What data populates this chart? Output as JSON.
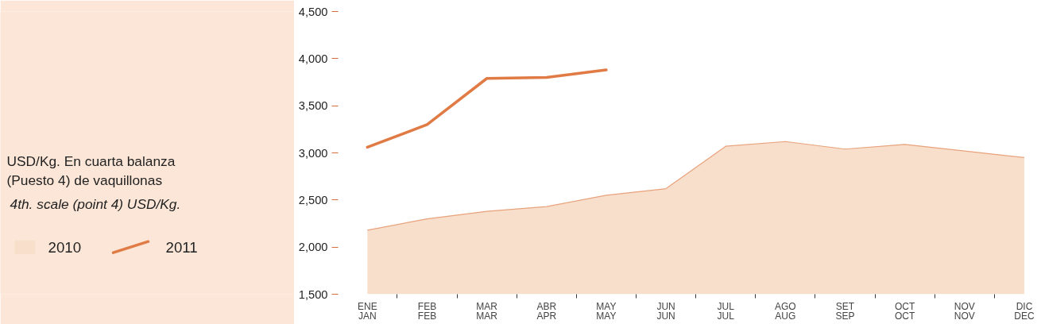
{
  "chart_data": {
    "type": "line",
    "annotations": [
      "USD/Kg. En cuarta balanza\n(Puesto 4) de vaquillonas"
    ],
    "subtitle": "4th. scale (point 4) USD/Kg.",
    "categories": [
      "ENE\nJAN",
      "FEB\nFEB",
      "MAR\nMAR",
      "ABR\nAPR",
      "MAY\nMAY",
      "JUN\nJUN",
      "JUL\nJUL",
      "AGO\nAUG",
      "SET\nSEP",
      "OCT\nOCT",
      "NOV\nNOV",
      "DIC\nDEC"
    ],
    "series": [
      {
        "name": "2010",
        "type": "area",
        "color": "#f7dfcc",
        "values": [
          2180,
          2300,
          2380,
          2430,
          2550,
          2620,
          3070,
          3120,
          3040,
          3090,
          3020,
          2950
        ]
      },
      {
        "name": "2011",
        "color": "#e07b45",
        "values": [
          3060,
          3300,
          3790,
          3800,
          3880,
          null,
          null,
          null,
          null,
          null,
          null,
          null
        ]
      }
    ],
    "ylim": [
      1500,
      4500
    ],
    "yticks": [
      {
        "value": 1500,
        "label": "1,500"
      },
      {
        "value": 2000,
        "label": "2,000"
      },
      {
        "value": 2500,
        "label": "2,500"
      },
      {
        "value": 3000,
        "label": "3,000"
      },
      {
        "value": 3500,
        "label": "3,500"
      },
      {
        "value": 4000,
        "label": "4,000"
      },
      {
        "value": 4500,
        "label": "4,500"
      }
    ],
    "grid": false,
    "legend": "bottom left",
    "line_style": "solid"
  }
}
